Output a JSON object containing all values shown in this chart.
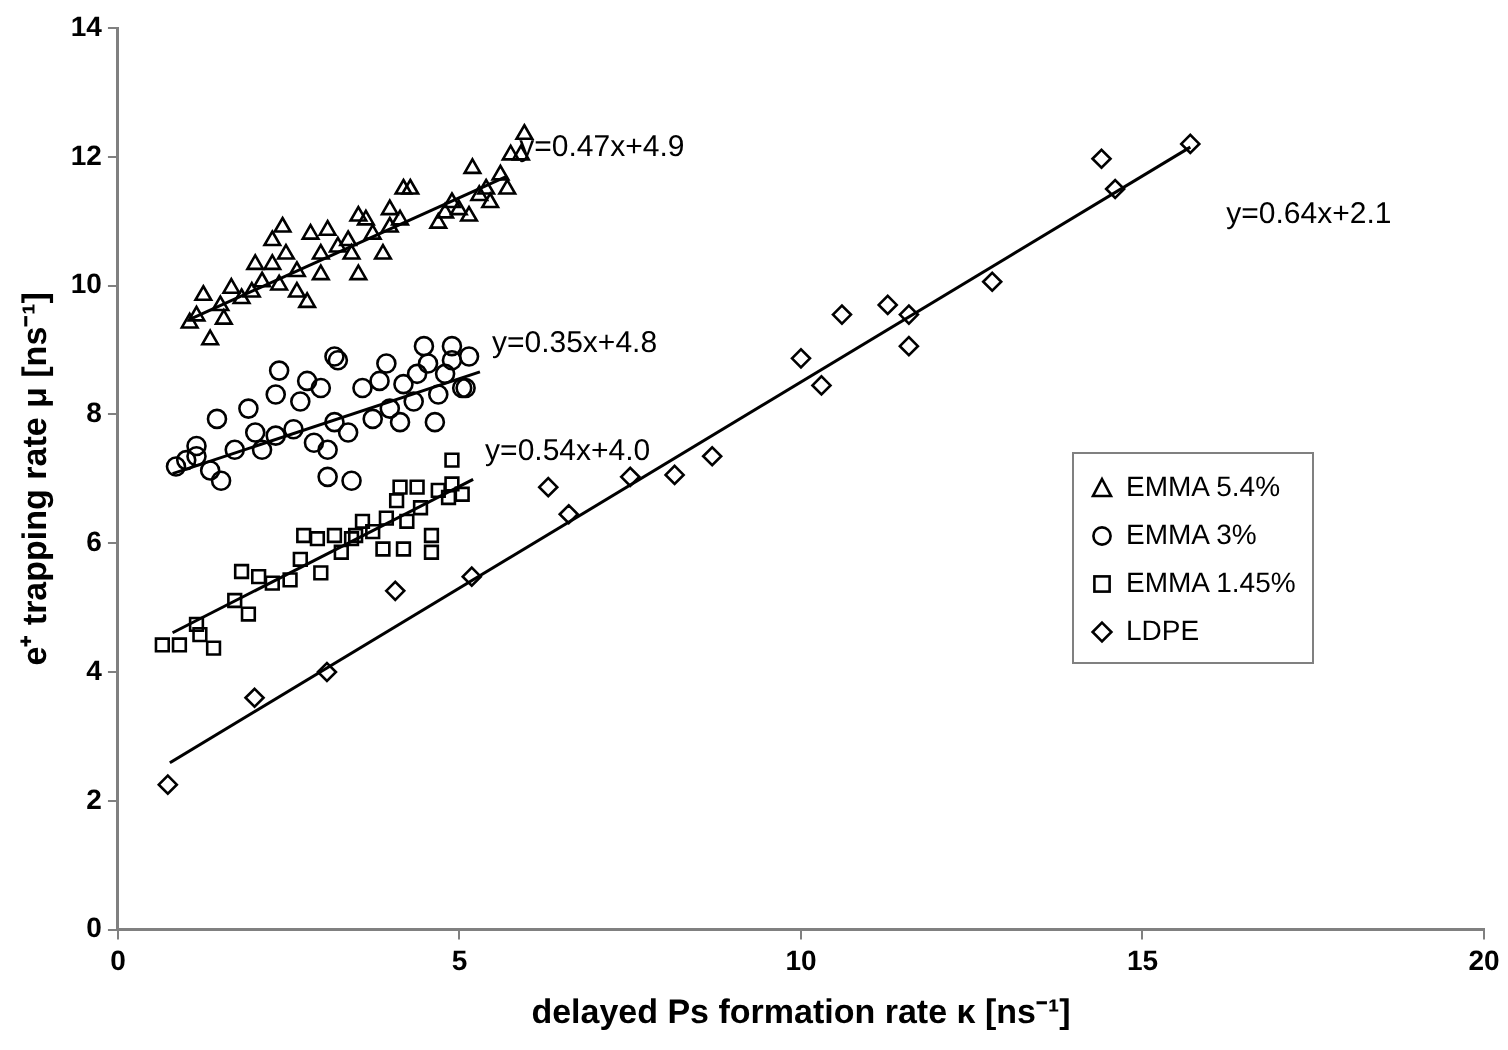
{
  "chart_data": {
    "type": "scatter",
    "xlabel": "delayed Ps formation rate κ [ns⁻¹]",
    "ylabel": "e⁺ trapping rate μ [ns⁻¹]",
    "xlim": [
      0,
      20
    ],
    "xticks": [
      0,
      5,
      10,
      15,
      20
    ],
    "ylim": [
      0,
      14
    ],
    "yticks": [
      0,
      2,
      4,
      6,
      8,
      10,
      12,
      14
    ],
    "grid": false,
    "legend": "right",
    "series": [
      {
        "name": "EMMA 5.4%",
        "color": "#000000",
        "marker": "triangle",
        "x": [
          1.35,
          1.15,
          1.25,
          1.5,
          1.66,
          1.81,
          2.01,
          2.11,
          2.26,
          2.41,
          2.36,
          2.62,
          2.77,
          2.82,
          3.07,
          2.97,
          3.22,
          3.42,
          3.52,
          3.63,
          3.73,
          3.88,
          3.98,
          4.18,
          4.28,
          4.13,
          3.98,
          4.69,
          4.99,
          5.14,
          5.19,
          5.29,
          5.45,
          5.6,
          5.7,
          5.75,
          5.9,
          5.95,
          2.46,
          1.96,
          1.55,
          1.05,
          3.37,
          2.97,
          2.26,
          2.62,
          3.52,
          5.39,
          4.79,
          4.89
        ],
        "values": [
          9.16,
          9.53,
          9.85,
          9.69,
          9.96,
          9.8,
          10.33,
          10.06,
          10.7,
          10.91,
          10.01,
          10.22,
          9.74,
          10.8,
          10.86,
          10.49,
          10.6,
          10.49,
          10.17,
          11.02,
          10.8,
          10.49,
          11.18,
          11.5,
          11.5,
          11.02,
          10.91,
          10.97,
          11.18,
          11.08,
          11.82,
          11.4,
          11.29,
          11.72,
          11.5,
          12.03,
          12.03,
          12.35,
          10.49,
          9.9,
          9.48,
          9.42,
          10.7,
          10.17,
          10.33,
          9.9,
          11.08,
          11.5,
          11.13,
          11.29
        ]
      },
      {
        "name": "EMMA 3%",
        "color": "#000000",
        "marker": "circle",
        "x": [
          0.85,
          1.0,
          1.15,
          1.45,
          1.51,
          1.35,
          1.71,
          1.91,
          2.01,
          2.11,
          2.31,
          2.36,
          2.31,
          2.57,
          2.67,
          2.87,
          2.97,
          3.07,
          3.07,
          3.22,
          3.17,
          3.42,
          3.37,
          3.58,
          3.73,
          3.83,
          3.93,
          3.98,
          4.13,
          4.18,
          4.33,
          4.38,
          4.54,
          4.64,
          4.69,
          4.79,
          4.89,
          5.04,
          5.14,
          3.17,
          4.48,
          4.89,
          5.09,
          1.15,
          2.77
        ],
        "values": [
          7.19,
          7.29,
          7.51,
          7.93,
          6.97,
          7.13,
          7.45,
          8.09,
          7.72,
          7.45,
          8.31,
          8.68,
          7.67,
          7.77,
          8.2,
          7.56,
          8.41,
          7.45,
          7.03,
          8.84,
          7.88,
          6.97,
          7.72,
          8.41,
          7.93,
          8.52,
          8.79,
          8.09,
          7.88,
          8.47,
          8.2,
          8.63,
          8.79,
          7.88,
          8.31,
          8.63,
          8.84,
          8.41,
          8.9,
          8.9,
          9.06,
          9.06,
          8.41,
          7.35,
          8.52
        ]
      },
      {
        "name": "EMMA 1.45%",
        "color": "#000000",
        "marker": "square",
        "x": [
          0.65,
          0.9,
          1.15,
          1.4,
          1.71,
          1.91,
          1.81,
          2.06,
          2.26,
          2.52,
          2.67,
          2.72,
          2.97,
          2.92,
          3.17,
          3.27,
          3.42,
          3.58,
          3.73,
          3.88,
          3.93,
          4.08,
          4.18,
          4.23,
          4.38,
          4.43,
          4.59,
          4.59,
          4.69,
          4.84,
          4.89,
          4.89,
          5.04,
          3.48,
          4.13,
          1.2
        ],
        "values": [
          4.42,
          4.42,
          4.74,
          4.37,
          5.11,
          4.9,
          5.56,
          5.48,
          5.38,
          5.43,
          5.75,
          6.12,
          5.54,
          6.07,
          6.12,
          5.86,
          6.07,
          6.34,
          6.18,
          5.91,
          6.39,
          6.66,
          5.91,
          6.34,
          6.87,
          6.55,
          6.12,
          5.86,
          6.82,
          6.71,
          7.29,
          6.92,
          6.76,
          6.12,
          6.87,
          4.58
        ]
      },
      {
        "name": "LDPE",
        "color": "#000000",
        "marker": "diamond",
        "x": [
          0.73,
          2.0,
          3.06,
          4.06,
          5.18,
          6.3,
          6.6,
          7.5,
          8.15,
          8.7,
          10.0,
          10.3,
          10.6,
          11.27,
          11.58,
          11.58,
          12.8,
          14.4,
          14.6,
          15.7
        ],
        "values": [
          2.25,
          3.6,
          4.0,
          5.26,
          5.48,
          6.87,
          6.45,
          7.03,
          7.06,
          7.35,
          8.87,
          8.45,
          9.55,
          9.7,
          9.55,
          9.06,
          10.06,
          11.97,
          11.5,
          12.2
        ]
      },
      {
        "type": "line",
        "name": "y=0.47x+4.9",
        "color": "#000000",
        "x": [
          1.1,
          5.7
        ],
        "values": [
          9.5,
          11.7
        ]
      },
      {
        "type": "line",
        "name": "y=0.35x+4.8",
        "color": "#000000",
        "x": [
          0.8,
          5.3
        ],
        "values": [
          7.08,
          8.66
        ]
      },
      {
        "type": "line",
        "name": "y=0.54x+4.0",
        "color": "#000000",
        "x": [
          0.8,
          5.2
        ],
        "values": [
          4.61,
          6.99
        ]
      },
      {
        "type": "line",
        "name": "y=0.64x+2.1",
        "color": "#000000",
        "x": [
          0.76,
          15.7
        ],
        "values": [
          2.59,
          12.15
        ]
      }
    ]
  }
}
